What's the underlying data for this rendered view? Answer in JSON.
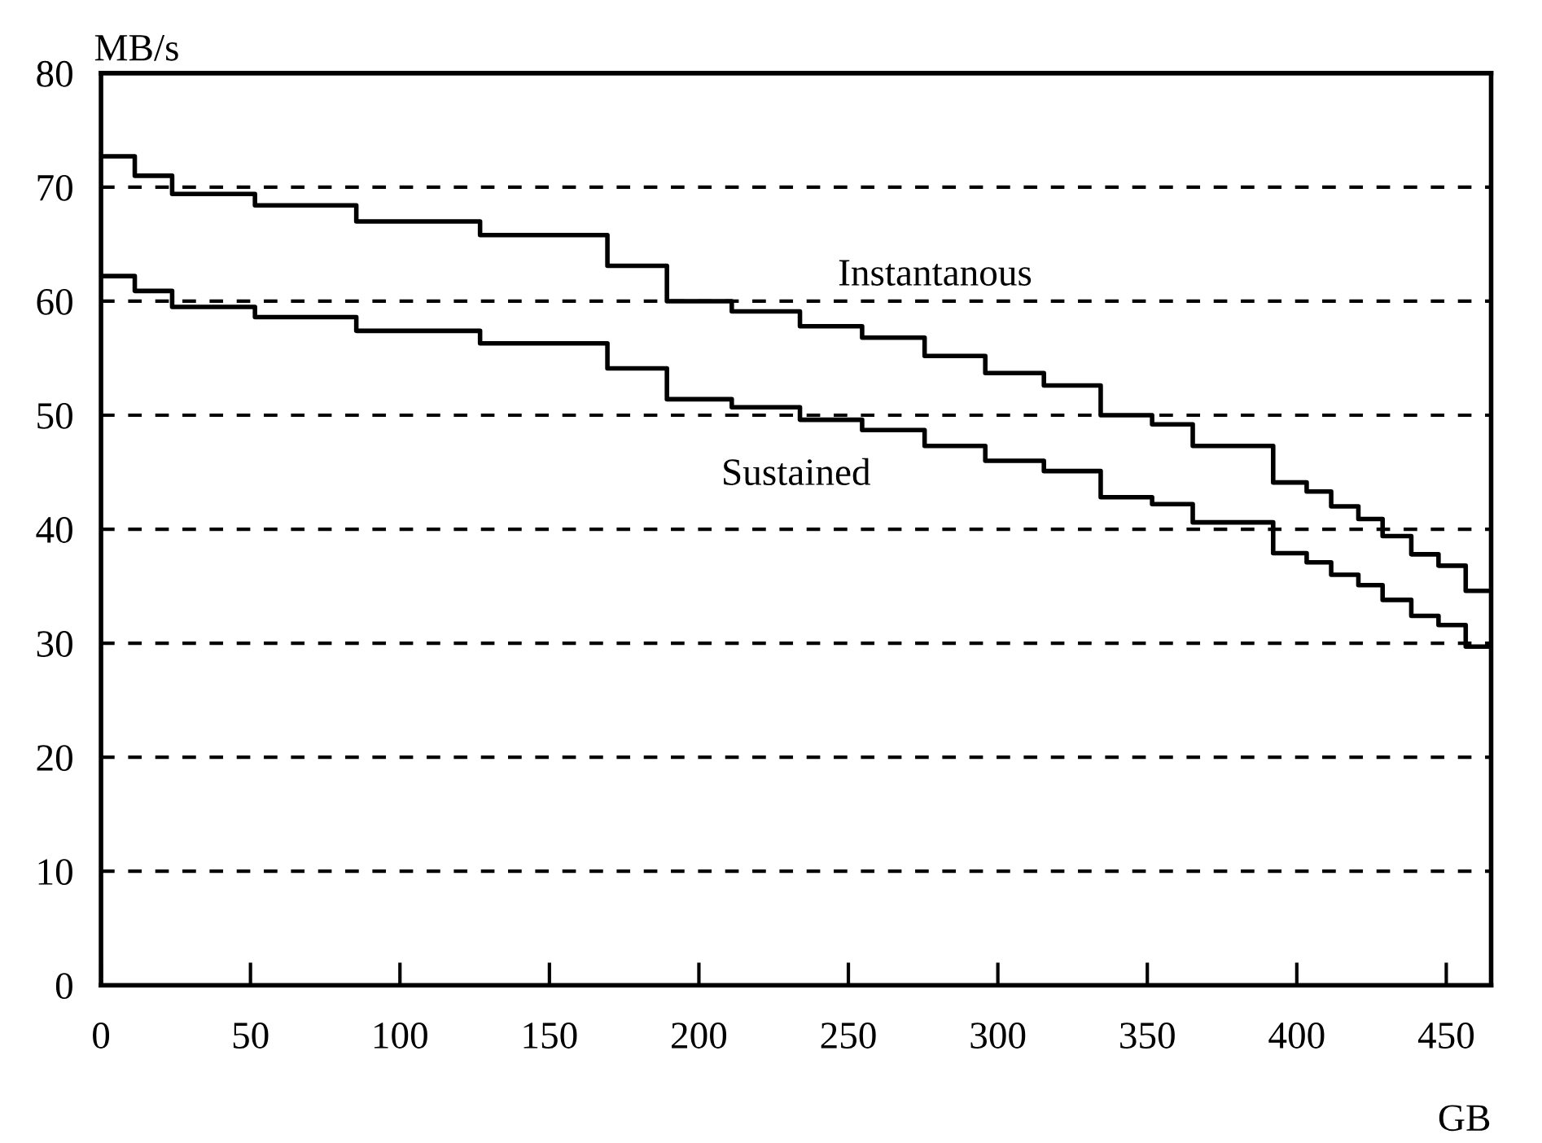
{
  "chart_data": {
    "type": "step",
    "xlabel": "GB",
    "ylabel": "MB/s",
    "xlim": [
      0,
      465
    ],
    "xticks": [
      0,
      50,
      100,
      150,
      200,
      250,
      300,
      350,
      400,
      450
    ],
    "ylim": [
      0,
      80
    ],
    "yticks": [
      0,
      10,
      20,
      30,
      40,
      50,
      60,
      70,
      80
    ],
    "grid": "y",
    "line_style": "solid",
    "marker": "none",
    "legend": false,
    "x": [
      0,
      11.3,
      23.8,
      51.5,
      85.4,
      126.8,
      169.4,
      189.3,
      211,
      233.8,
      254.6,
      275.5,
      295.8,
      315.4,
      334.4,
      351.6,
      365.2,
      392.1,
      403.3,
      411.5,
      420.6,
      428.7,
      438.3,
      447.4,
      456.5,
      465
    ],
    "series": [
      {
        "name": "Instantanous",
        "color": "#000000",
        "values": [
          72.7,
          71.0,
          69.4,
          68.4,
          67.0,
          65.8,
          63.1,
          60.0,
          59.1,
          57.8,
          56.8,
          55.2,
          53.7,
          52.6,
          50.0,
          49.2,
          47.3,
          44.1,
          43.3,
          42.0,
          40.9,
          39.4,
          37.8,
          36.8,
          34.6,
          34.6
        ]
      },
      {
        "name": "Sustained",
        "color": "#000000",
        "values": [
          62.2,
          60.9,
          59.5,
          58.6,
          57.4,
          56.3,
          54.1,
          51.4,
          50.7,
          49.6,
          48.7,
          47.3,
          46.0,
          45.1,
          42.8,
          42.2,
          40.6,
          37.9,
          37.1,
          36.0,
          35.1,
          33.8,
          32.4,
          31.6,
          29.7,
          29.7
        ]
      }
    ]
  }
}
